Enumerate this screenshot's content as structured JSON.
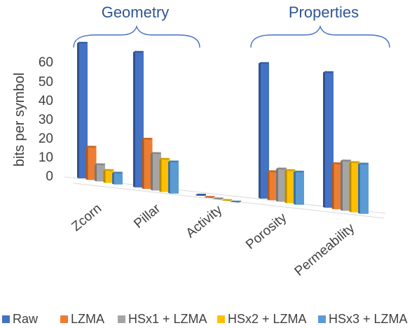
{
  "chart_data": {
    "type": "bar",
    "view": "3d-clustered-column",
    "groups": [
      {
        "label": "Geometry",
        "categories": [
          "Zcorn",
          "Pillar",
          "Activity"
        ]
      },
      {
        "label": "Properties",
        "categories": [
          "Porosity",
          "Permeability"
        ]
      }
    ],
    "categories": [
      "Zcorn",
      "Pillar",
      "Activity",
      "Porosity",
      "Permeability"
    ],
    "series": [
      {
        "name": "Raw",
        "color": "#4472c4",
        "values": [
          64,
          64,
          1,
          64,
          64
        ]
      },
      {
        "name": "LZMA",
        "color": "#ed7d31",
        "values": [
          16,
          24,
          0.5,
          14,
          22
        ]
      },
      {
        "name": "HSx1 + LZMA",
        "color": "#a5a5a5",
        "values": [
          8.5,
          18,
          0.5,
          16,
          24
        ]
      },
      {
        "name": "HSx2 + LZMA",
        "color": "#ffc000",
        "values": [
          6.5,
          16,
          0.5,
          16,
          24
        ]
      },
      {
        "name": "HSx3 + LZMA",
        "color": "#5b9bd5",
        "values": [
          6,
          15.5,
          0.5,
          16,
          24
        ]
      }
    ],
    "ylabel": "bits per symbol",
    "ylim": [
      0,
      60
    ],
    "yticks": [
      "60",
      "50",
      "40",
      "30",
      "20",
      "10",
      "0"
    ],
    "grid": false,
    "legend_position": "bottom",
    "colors": {
      "group_label": "#2f5597",
      "brace": "#4472c4",
      "axis_text": "#404040",
      "floor_line": "#d9d9d9"
    }
  }
}
